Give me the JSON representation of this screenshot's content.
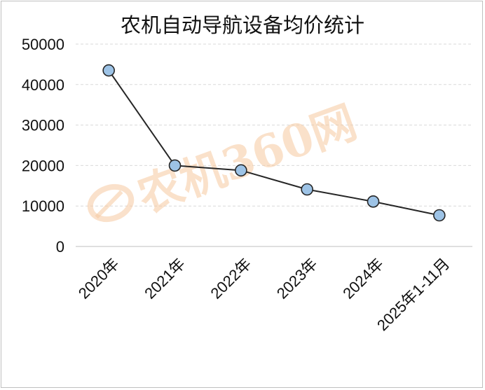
{
  "watermark": "农机360网",
  "chart_data": {
    "type": "line",
    "title": "农机自动导航设备均价统计",
    "categories": [
      "2020年",
      "2021年",
      "2022年",
      "2023年",
      "2024年",
      "2025年1-11月"
    ],
    "series": [
      {
        "values": [
          43500,
          20000,
          18800,
          14100,
          11100,
          7700
        ]
      }
    ],
    "ylim": [
      0,
      50000
    ],
    "yticks": [
      0,
      10000,
      20000,
      30000,
      40000,
      50000
    ],
    "grid": true,
    "legend": "none",
    "colors": {
      "line": "#262626",
      "marker_fill": "#9dc3e6",
      "marker_stroke": "#262626",
      "grid": "#d9d9d9"
    }
  }
}
